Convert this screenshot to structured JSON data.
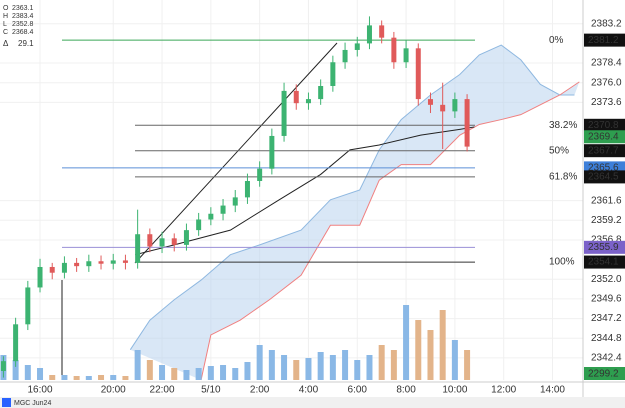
{
  "chart_data": {
    "type": "candlestick",
    "symbol": "MGC Jun24",
    "legend": [
      {
        "label": "O",
        "value": 2363.1
      },
      {
        "label": "H",
        "value": 2383.4
      },
      {
        "label": "L",
        "value": 2352.8
      },
      {
        "label": "C",
        "value": 2368.4
      }
    ],
    "delta": {
      "label": "Δ",
      "value": 29.1,
      "color": "#3aa757"
    },
    "x": [
      -1.5,
      -1,
      -0.5,
      0,
      0.5,
      1,
      1.5,
      2,
      2.5,
      3,
      3.5,
      4,
      4.5,
      5,
      5.5,
      6,
      6.5,
      7,
      7.5,
      8,
      8.5,
      9,
      9.5,
      10,
      10.5,
      11,
      11.5,
      12,
      12.5,
      13,
      13.5,
      14,
      14.5,
      15,
      15.5,
      16,
      16.5,
      17,
      17.5
    ],
    "open": [
      2340.8,
      2342.0,
      2346.5,
      2351.0,
      2353.5,
      2352.8,
      2354.0,
      2353.6,
      2354.2,
      2353.9,
      2354.3,
      2354.0,
      2357.5,
      2356.0,
      2357.0,
      2356.2,
      2358.0,
      2359.3,
      2360.0,
      2361.0,
      2362.0,
      2364.0,
      2365.5,
      2369.5,
      2375.0,
      2373.5,
      2374.0,
      2375.6,
      2378.5,
      2380.0,
      2380.8,
      2383.0,
      2381.5,
      2378.5,
      2380.2,
      2374.0,
      2373.3,
      2372.5,
      2374.0
    ],
    "high": [
      2342.6,
      2347.3,
      2351.8,
      2354.5,
      2354.0,
      2354.8,
      2354.6,
      2355.0,
      2354.9,
      2355.1,
      2355.0,
      2360.5,
      2358.2,
      2357.8,
      2357.6,
      2358.8,
      2360.1,
      2360.8,
      2361.8,
      2362.9,
      2364.9,
      2366.4,
      2370.4,
      2376.0,
      2375.8,
      2374.8,
      2376.4,
      2379.3,
      2380.9,
      2381.6,
      2384.1,
      2383.6,
      2382.2,
      2381.2,
      2380.8,
      2374.8,
      2376.0,
      2374.8,
      2374.6
    ],
    "low": [
      2340.0,
      2341.3,
      2345.8,
      2350.4,
      2352.0,
      2352.1,
      2352.9,
      2352.9,
      2353.2,
      2353.2,
      2353.2,
      2353.3,
      2355.3,
      2355.2,
      2355.4,
      2355.5,
      2357.3,
      2358.6,
      2359.2,
      2360.2,
      2361.2,
      2363.3,
      2364.8,
      2368.8,
      2372.7,
      2372.7,
      2373.3,
      2374.9,
      2377.7,
      2379.2,
      2380.1,
      2380.8,
      2377.7,
      2377.8,
      2373.2,
      2372.3,
      2367.9,
      2371.7,
      2367.6
    ],
    "close": [
      2342.0,
      2346.5,
      2351.0,
      2353.5,
      2352.8,
      2354.0,
      2353.6,
      2354.2,
      2353.9,
      2354.3,
      2354.0,
      2357.5,
      2356.0,
      2357.0,
      2356.2,
      2358.0,
      2359.3,
      2360.0,
      2361.0,
      2362.0,
      2364.0,
      2365.5,
      2369.5,
      2375.0,
      2373.5,
      2374.0,
      2375.6,
      2378.5,
      2380.0,
      2380.8,
      2383.0,
      2381.5,
      2378.5,
      2380.2,
      2374.0,
      2373.3,
      2372.5,
      2374.0,
      2368.2
    ],
    "volume": [
      25,
      20,
      15,
      12,
      5,
      5,
      4,
      4,
      5,
      5,
      4,
      30,
      20,
      15,
      12,
      10,
      12,
      14,
      15,
      12,
      18,
      35,
      30,
      25,
      20,
      22,
      28,
      25,
      30,
      20,
      25,
      35,
      30,
      75,
      60,
      50,
      70,
      40,
      30
    ],
    "vlim": [
      0,
      100
    ],
    "up_color": "#3cb371",
    "down_color": "#e05a5a",
    "vol_up_color": "#8ab8e6",
    "vol_down_color": "#e3b48a",
    "cloud": {
      "color": "#b9d3ee",
      "span_a": {
        "color": "#8fb8e0",
        "x": [
          3.7,
          4.5,
          5.5,
          6.6,
          7.8,
          9.0,
          10.7,
          11.9,
          13.1,
          13.9,
          14.8,
          16.0,
          17.2,
          18.0,
          18.9,
          19.7,
          20.5,
          21.3,
          21.9
        ],
        "values": [
          2343.4,
          2347.0,
          2349.5,
          2351.9,
          2355.0,
          2356.2,
          2358.0,
          2361.7,
          2362.9,
          2367.8,
          2371.5,
          2374.5,
          2377.0,
          2379.4,
          2380.6,
          2378.8,
          2375.8,
          2374.5,
          2374.5
        ]
      },
      "span_b": {
        "color": "#f08080",
        "x": [
          6.6,
          7.0,
          8.2,
          9.4,
          10.7,
          11.9,
          13.1,
          13.9,
          14.8,
          16.0,
          17.2,
          18.0,
          18.9,
          19.7,
          20.5,
          21.3,
          22.1
        ],
        "values": [
          2339.7,
          2345.2,
          2347.0,
          2349.5,
          2352.5,
          2358.6,
          2358.6,
          2364.1,
          2366.0,
          2366.0,
          2369.6,
          2370.9,
          2371.5,
          2372.1,
          2373.3,
          2374.5,
          2376.1
        ]
      }
    },
    "baseline": {
      "color": "#222",
      "x": [
        3.9,
        5.5,
        7.8,
        9.8,
        11.5,
        12.7,
        13.9,
        15.6,
        17.2,
        17.8
      ],
      "values": [
        2355.0,
        2356.2,
        2358.0,
        2361.7,
        2364.8,
        2367.8,
        2368.4,
        2369.6,
        2370.3,
        2370.6
      ]
    },
    "fib": [
      {
        "label": "0%",
        "value": 2381.2,
        "color": "#3aa757"
      },
      {
        "label": "38.2%",
        "value": 2370.8,
        "color": "#666"
      },
      {
        "label": "50%",
        "value": 2367.7,
        "color": "#666"
      },
      {
        "label": "61.8%",
        "value": 2364.5,
        "color": "#666"
      },
      {
        "label": "100%",
        "value": 2354.1,
        "color": "#333"
      }
    ],
    "hlines": [
      {
        "value": 2365.6,
        "color": "#5b8fd6"
      },
      {
        "value": 2355.9,
        "color": "#9a8fd6"
      }
    ],
    "badges": [
      {
        "value": 2381.2,
        "color": "#111"
      },
      {
        "value": 2370.8,
        "color": "#111"
      },
      {
        "value": 2369.4,
        "color": "#2e9e4f"
      },
      {
        "value": 2367.7,
        "color": "#111"
      },
      {
        "value": 2365.6,
        "color": "#3d7fd9"
      },
      {
        "value": 2364.5,
        "color": "#111"
      },
      {
        "value": 2355.9,
        "color": "#7b62c9"
      },
      {
        "value": 2354.1,
        "color": "#111"
      }
    ],
    "volume_badge": {
      "value": 2299.2,
      "color": "#2e9e4f"
    },
    "xlim": [
      -1.64,
      22.25
    ],
    "xticks": [
      {
        "value": 0,
        "label": "16:00"
      },
      {
        "value": 3,
        "label": "20:00"
      },
      {
        "value": 5,
        "label": "22:00"
      },
      {
        "value": 7,
        "label": "5/10"
      },
      {
        "value": 9,
        "label": "2:00"
      },
      {
        "value": 11,
        "label": "4:00"
      },
      {
        "value": 13,
        "label": "6:00"
      },
      {
        "value": 15,
        "label": "8:00"
      },
      {
        "value": 17,
        "label": "10:00"
      },
      {
        "value": 19,
        "label": "12:00"
      },
      {
        "value": 21,
        "label": "14:00"
      }
    ],
    "ylim": [
      2339.7,
      2386.1
    ],
    "yticks": [
      2383.2,
      2378.4,
      {
        "value": 2376,
        "label": "2376.0"
      },
      2373.6,
      2361.6,
      2359.2,
      2356.8,
      {
        "value": 2352,
        "label": "2352.0"
      },
      2349.6,
      2347.2,
      2344.8,
      2342.4
    ],
    "grid": true
  }
}
